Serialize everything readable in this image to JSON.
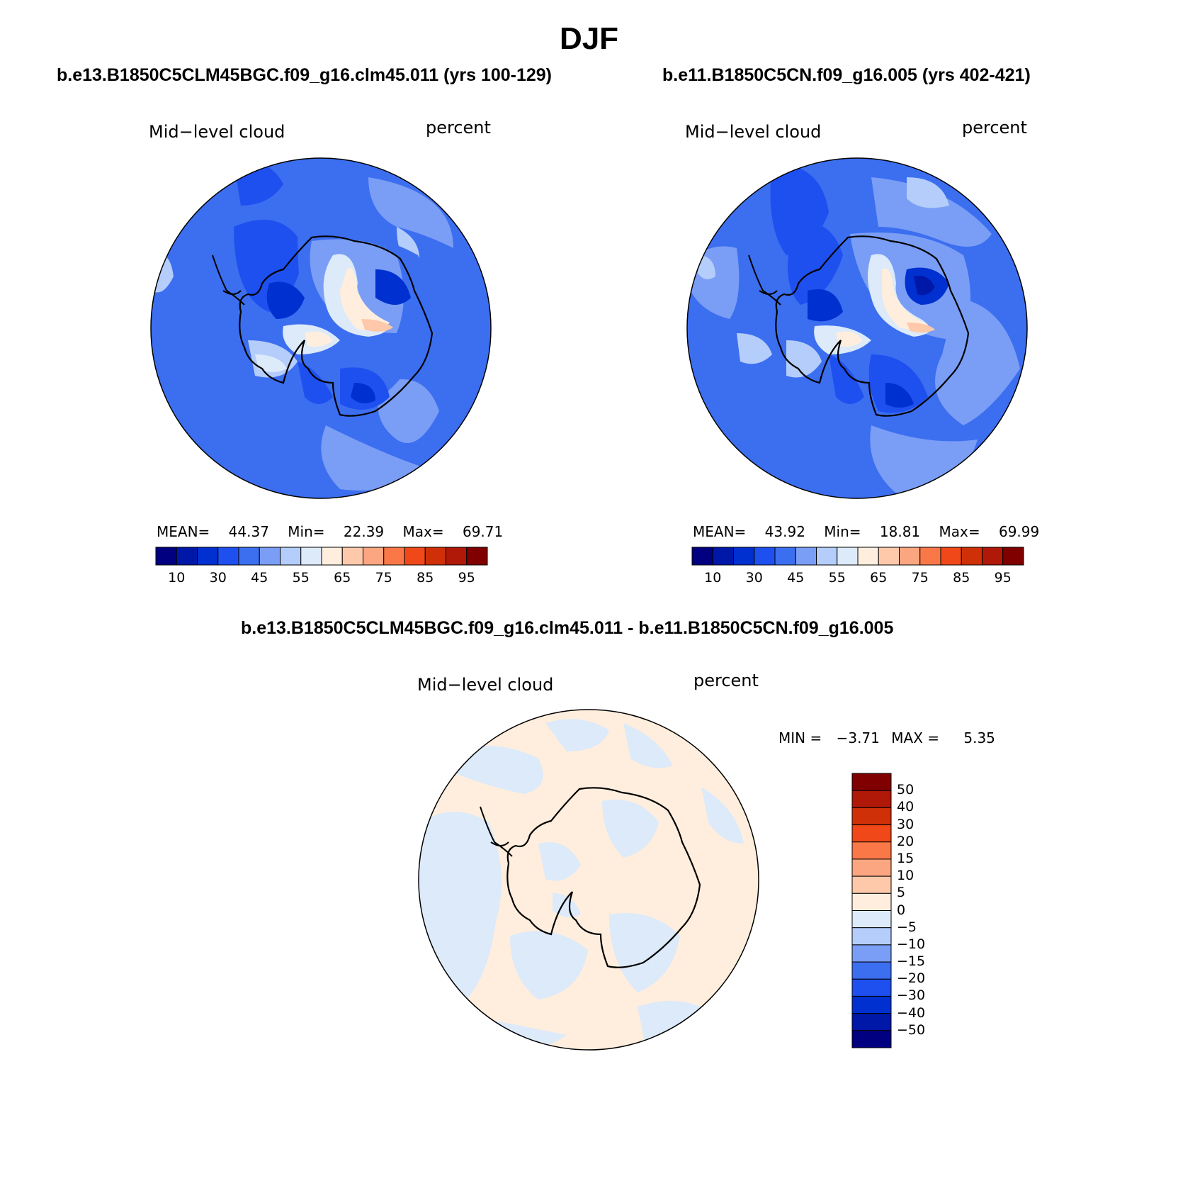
{
  "title": "DJF",
  "panels": [
    {
      "case": "b.e13.B1850C5CLM45BGC.f09_g16.clm45.011 (yrs 100-129)",
      "variable": "Mid−level cloud",
      "units": "percent",
      "stats": {
        "mean_label": "MEAN=",
        "mean": "44.37",
        "min_label": "Min=",
        "min": "22.39",
        "max_label": "Max=",
        "max": "69.71"
      }
    },
    {
      "case": "b.e11.B1850C5CN.f09_g16.005 (yrs 402-421)",
      "variable": "Mid−level cloud",
      "units": "percent",
      "stats": {
        "mean_label": "MEAN=",
        "mean": "43.92",
        "min_label": "Min=",
        "min": "18.81",
        "max_label": "Max=",
        "max": "69.99"
      }
    }
  ],
  "diff_panel": {
    "case": "b.e13.B1850C5CLM45BGC.f09_g16.clm45.011 - b.e11.B1850C5CN.f09_g16.005",
    "variable": "Mid−level cloud",
    "units": "percent",
    "stats": {
      "min_label": "MIN =",
      "min": "−3.71",
      "max_label": "MAX =",
      "max": "5.35"
    }
  },
  "colorbar_horizontal": {
    "colors": [
      "#000080",
      "#0018a8",
      "#0030d0",
      "#1e50f0",
      "#3c6ef0",
      "#7a9ef5",
      "#b4cdfa",
      "#dceafa",
      "#ffeedd",
      "#fdc9aa",
      "#fba680",
      "#fa7848",
      "#f04818",
      "#d03008",
      "#b01808",
      "#800000"
    ],
    "tick_labels": [
      "10",
      "30",
      "45",
      "55",
      "65",
      "75",
      "85",
      "95"
    ]
  },
  "colorbar_vertical": {
    "colors": [
      "#800000",
      "#b01808",
      "#d03008",
      "#f04818",
      "#fa7848",
      "#fba680",
      "#fdc9aa",
      "#ffeedd",
      "#dceafa",
      "#b4cdfa",
      "#7a9ef5",
      "#3c6ef0",
      "#1e50f0",
      "#0030d0",
      "#0018a8",
      "#000080"
    ],
    "tick_labels": [
      "50",
      "40",
      "30",
      "20",
      "15",
      "10",
      "5",
      "0",
      "−5",
      "−10",
      "−15",
      "−20",
      "−30",
      "−40",
      "−50"
    ]
  },
  "chart_data": [
    {
      "type": "heatmap",
      "title": "b.e13.B1850C5CLM45BGC.f09_g16.clm45.011 (yrs 100-129)",
      "variable": "Mid−level cloud",
      "units": "percent",
      "projection": "south polar stereographic",
      "contour_levels": [
        10,
        20,
        30,
        40,
        45,
        50,
        55,
        60,
        65,
        70,
        75,
        80,
        85,
        90,
        95
      ],
      "mean": 44.37,
      "min": 22.39,
      "max": 69.71
    },
    {
      "type": "heatmap",
      "title": "b.e11.B1850C5CN.f09_g16.005 (yrs 402-421)",
      "variable": "Mid−level cloud",
      "units": "percent",
      "projection": "south polar stereographic",
      "contour_levels": [
        10,
        20,
        30,
        40,
        45,
        50,
        55,
        60,
        65,
        70,
        75,
        80,
        85,
        90,
        95
      ],
      "mean": 43.92,
      "min": 18.81,
      "max": 69.99
    },
    {
      "type": "heatmap",
      "title": "b.e13.B1850C5CLM45BGC.f09_g16.clm45.011 - b.e11.B1850C5CN.f09_g16.005",
      "variable": "Mid−level cloud",
      "units": "percent",
      "projection": "south polar stereographic",
      "contour_levels": [
        -50,
        -40,
        -30,
        -20,
        -15,
        -10,
        -5,
        0,
        5,
        10,
        15,
        20,
        30,
        40,
        50
      ],
      "min": -3.71,
      "max": 5.35
    }
  ]
}
